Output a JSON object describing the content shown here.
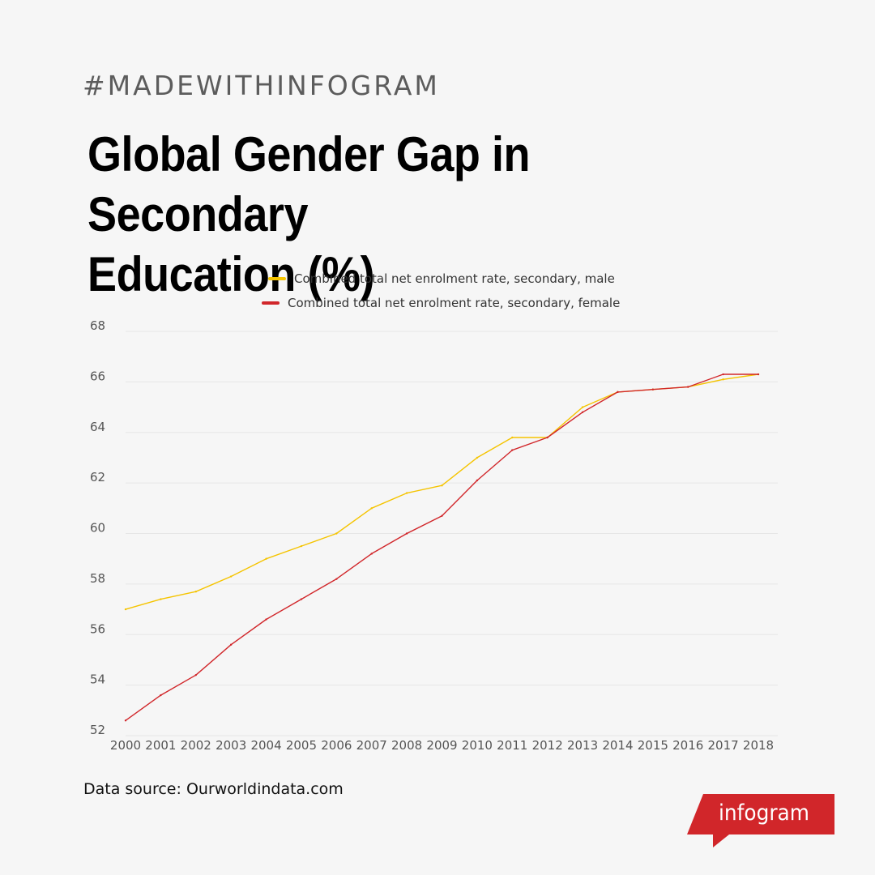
{
  "hashtag": "#MADEWITHINFOGRAM",
  "title_line1": "Global Gender Gap in Secondary",
  "title_line2": "Education (%)",
  "source": "Data source: Ourworldindata.com",
  "brand": "infogram",
  "colors": {
    "male": "#f5c400",
    "female": "#d1262a",
    "brand": "#d1262a",
    "grid": "#e6e6e6"
  },
  "chart_data": {
    "type": "line",
    "ylim": [
      52,
      68
    ],
    "yticks": [
      52,
      54,
      56,
      58,
      60,
      62,
      64,
      66,
      68
    ],
    "grid": true,
    "legend_position": "top-center",
    "x": [
      "2000",
      "2001",
      "2002",
      "2003",
      "2004",
      "2005",
      "2006",
      "2007",
      "2008",
      "2009",
      "2010",
      "2011",
      "2012",
      "2013",
      "2014",
      "2015",
      "2016",
      "2017",
      "2018"
    ],
    "series": [
      {
        "name": "Combined total net enrolment rate, secondary, male",
        "color": "#f5c400",
        "values": [
          57.0,
          57.4,
          57.7,
          58.3,
          59.0,
          59.5,
          60.0,
          61.0,
          61.6,
          61.9,
          63.0,
          63.8,
          63.8,
          65.0,
          65.6,
          65.7,
          65.8,
          66.1,
          66.3
        ]
      },
      {
        "name": "Combined total net enrolment rate, secondary, female",
        "color": "#d1262a",
        "values": [
          52.6,
          53.6,
          54.4,
          55.6,
          56.6,
          57.4,
          58.2,
          59.2,
          60.0,
          60.7,
          62.1,
          63.3,
          63.8,
          64.8,
          65.6,
          65.7,
          65.8,
          66.3,
          66.3
        ]
      }
    ]
  }
}
